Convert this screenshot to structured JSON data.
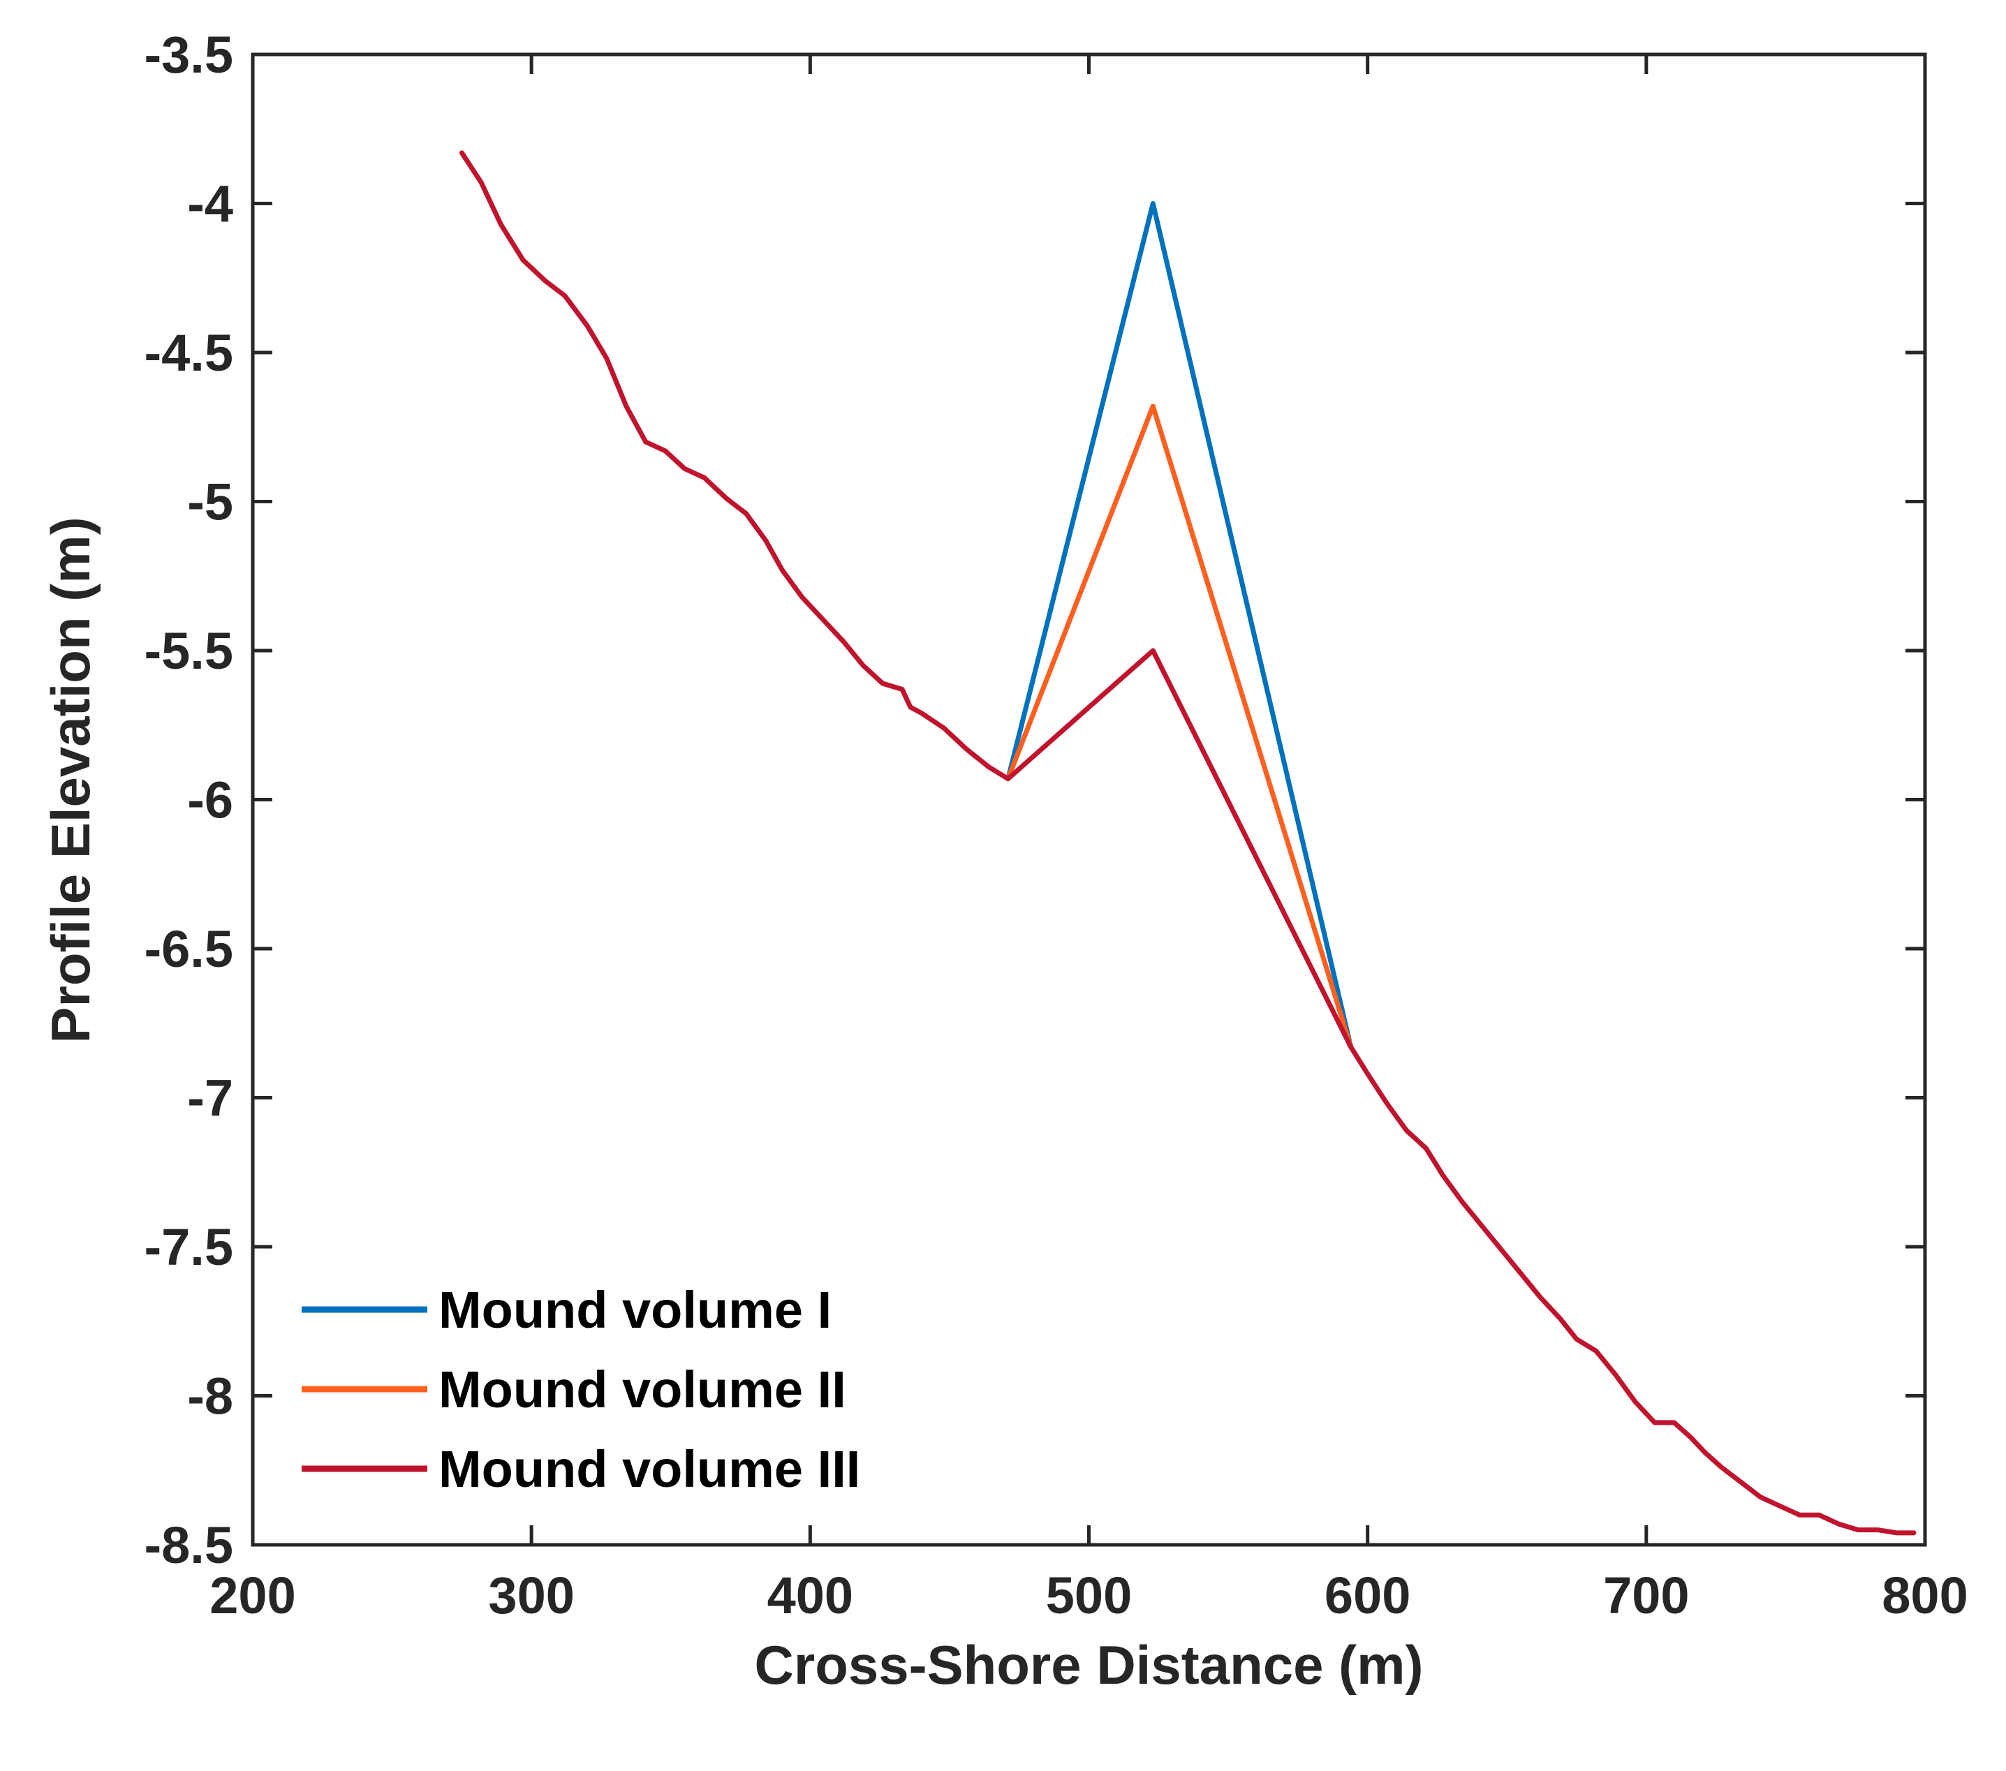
{
  "chart_data": {
    "type": "line",
    "title": "",
    "xlabel": "Cross-Shore Distance (m)",
    "ylabel": "Profile Elevation (m)",
    "xlim": [
      200,
      800
    ],
    "ylim": [
      -8.5,
      -3.5
    ],
    "xticks": [
      200,
      300,
      400,
      500,
      600,
      700,
      800
    ],
    "yticks": [
      -3.5,
      -4,
      -4.5,
      -5,
      -5.5,
      -6,
      -6.5,
      -7,
      -7.5,
      -8,
      -8.5
    ],
    "xtick_labels": [
      "200",
      "300",
      "400",
      "500",
      "600",
      "700",
      "800"
    ],
    "ytick_labels": [
      "-3.5",
      "-4",
      "-4.5",
      "-5",
      "-5.5",
      "-6",
      "-6.5",
      "-7",
      "-7.5",
      "-8",
      "-8.5"
    ],
    "grid": false,
    "legend_position": "bottom-left",
    "series": [
      {
        "name": "Mound volume I",
        "color": "#0072BD",
        "x": [
          471,
          523,
          594
        ],
        "y": [
          -5.93,
          -4.0,
          -6.83
        ]
      },
      {
        "name": "Mound volume II",
        "color": "#FF5F1F",
        "x": [
          471,
          523,
          594
        ],
        "y": [
          -5.93,
          -4.68,
          -6.83
        ]
      },
      {
        "name": "Mound volume III",
        "color": "#C0142E",
        "x": [
          275,
          282,
          289,
          297,
          305,
          312,
          320,
          327,
          334,
          341,
          348,
          355,
          362,
          370,
          377,
          384,
          390,
          397,
          405,
          412,
          419,
          426,
          433,
          436,
          440,
          448,
          456,
          464,
          471,
          523,
          594,
          600,
          607,
          614,
          621,
          627,
          634,
          641,
          648,
          655,
          662,
          669,
          675,
          682,
          689,
          696,
          703,
          710,
          716,
          721,
          727,
          734,
          741,
          748,
          755,
          762,
          769,
          776,
          783,
          790,
          796
        ],
        "y": [
          -3.83,
          -3.93,
          -4.07,
          -4.19,
          -4.26,
          -4.31,
          -4.41,
          -4.52,
          -4.68,
          -4.8,
          -4.83,
          -4.89,
          -4.92,
          -4.99,
          -5.04,
          -5.13,
          -5.23,
          -5.32,
          -5.4,
          -5.47,
          -5.55,
          -5.61,
          -5.63,
          -5.69,
          -5.71,
          -5.76,
          -5.83,
          -5.89,
          -5.93,
          -5.5,
          -6.83,
          -6.92,
          -7.02,
          -7.11,
          -7.17,
          -7.26,
          -7.35,
          -7.43,
          -7.51,
          -7.59,
          -7.67,
          -7.74,
          -7.81,
          -7.85,
          -7.93,
          -8.02,
          -8.09,
          -8.09,
          -8.14,
          -8.19,
          -8.24,
          -8.29,
          -8.34,
          -8.37,
          -8.4,
          -8.4,
          -8.43,
          -8.45,
          -8.45,
          -8.46,
          -8.46
        ]
      }
    ]
  }
}
